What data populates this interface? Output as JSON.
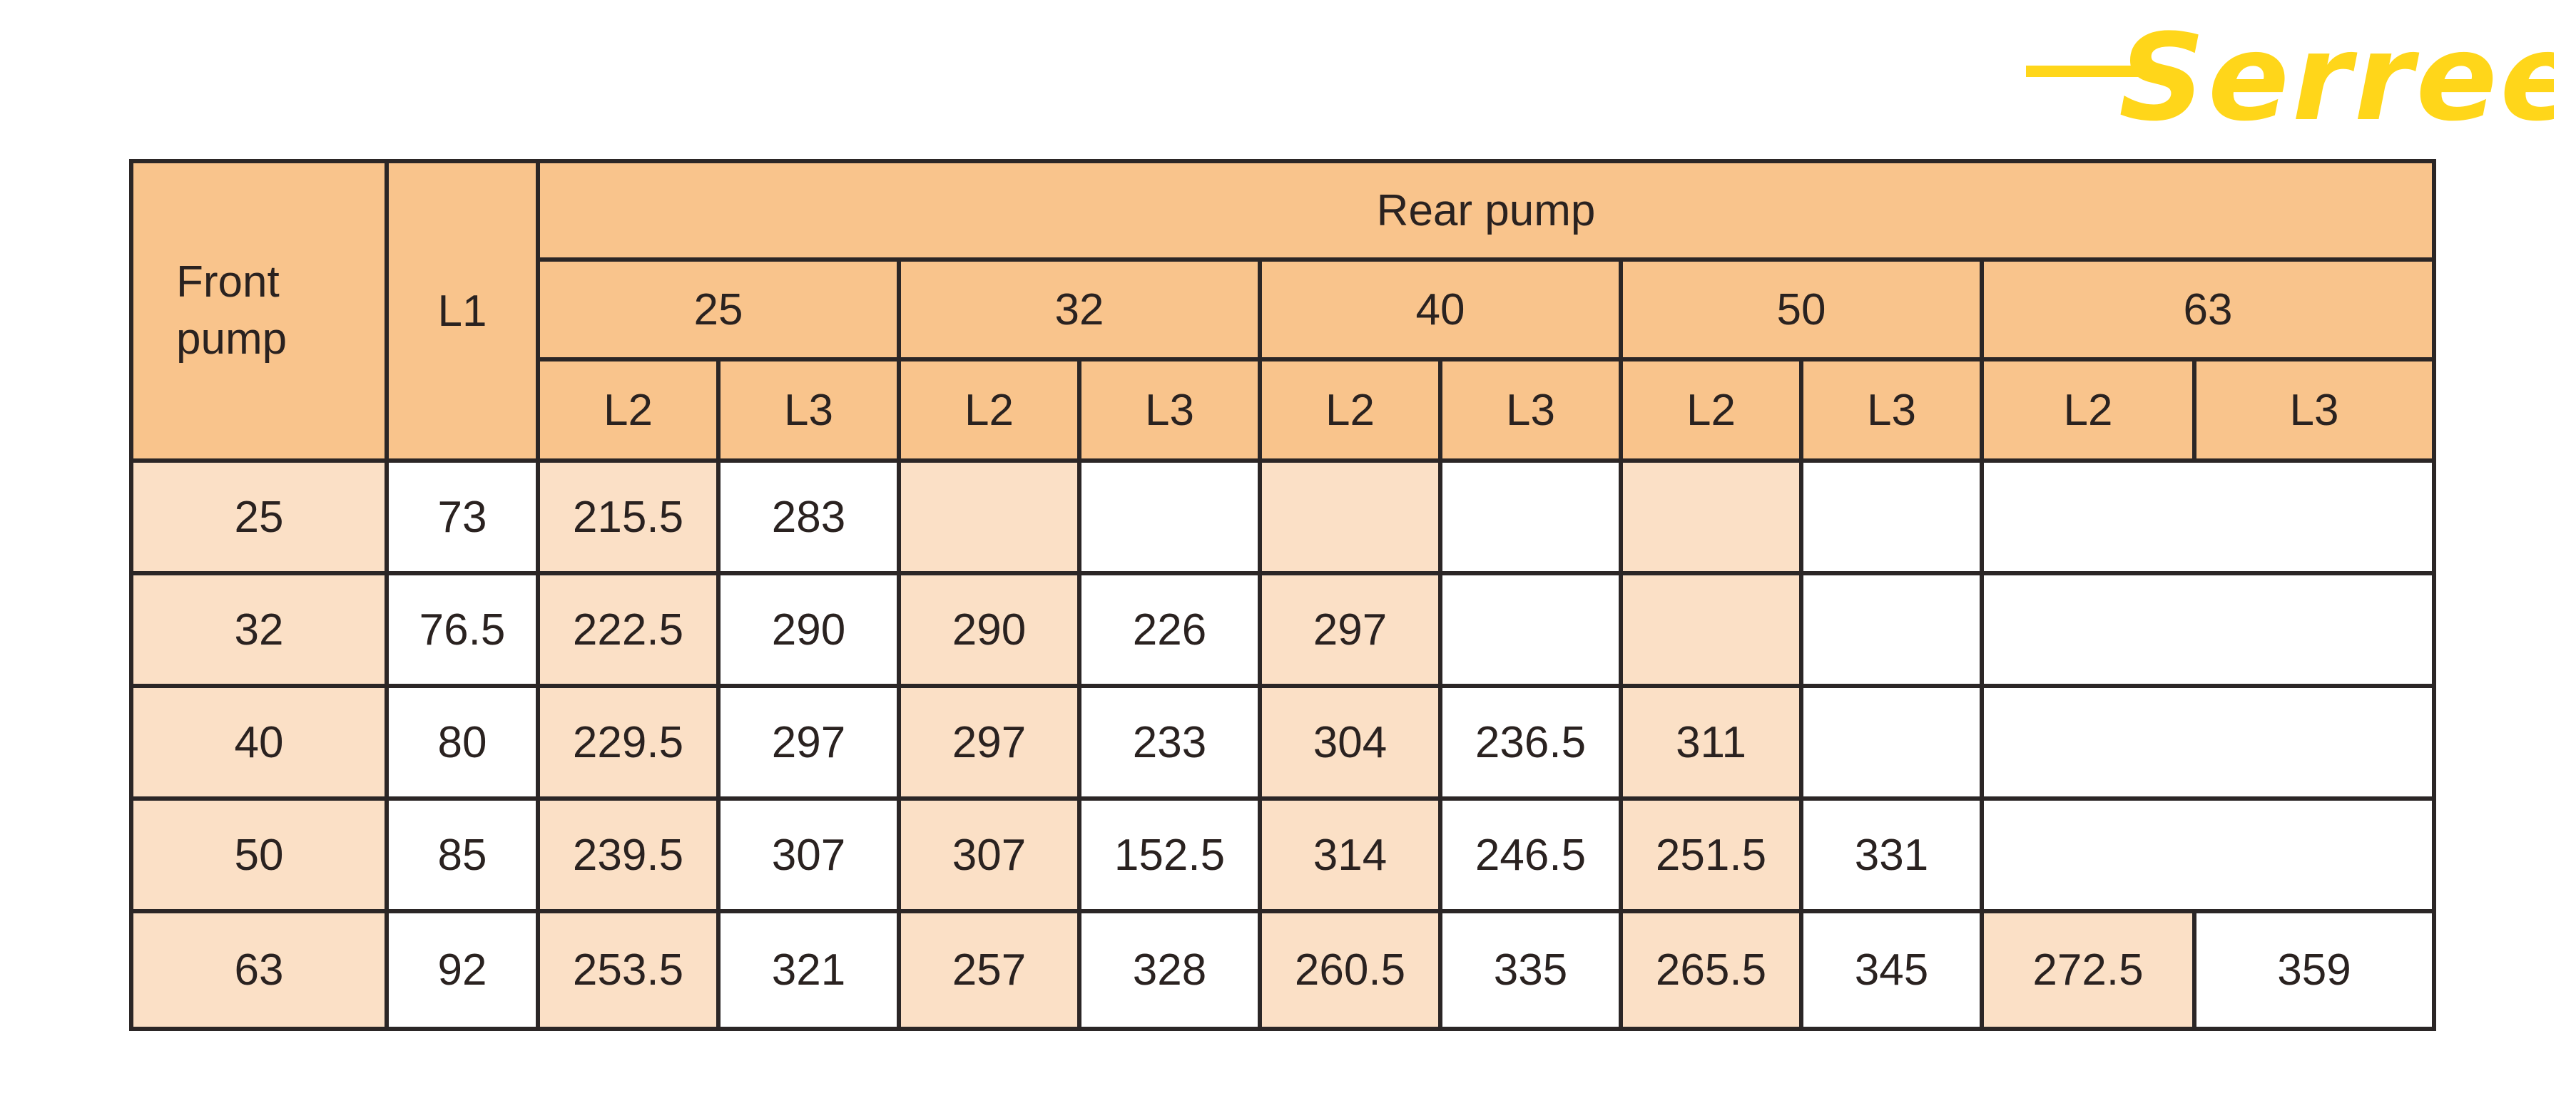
{
  "brand": {
    "logo_text": "Serreen",
    "color": "#ffd61a"
  },
  "colors": {
    "header": "#f9c48c",
    "shaded": "#fbe0c6",
    "border": "#2b2626"
  },
  "header": {
    "front_pump_line1": "Front",
    "front_pump_line2": "pump",
    "l1": "L1",
    "rear_pump": "Rear pump",
    "rear_sizes": [
      "25",
      "32",
      "40",
      "50",
      "63"
    ],
    "sub_labels": [
      "L2",
      "L3"
    ]
  },
  "rows": [
    {
      "front": "25",
      "l1": "73",
      "cells": [
        "215.5",
        "283",
        "",
        "",
        "",
        "",
        "",
        "",
        "",
        ""
      ]
    },
    {
      "front": "32",
      "l1": "76.5",
      "cells": [
        "222.5",
        "290",
        "290",
        "226",
        "297",
        "",
        "",
        "",
        "",
        ""
      ]
    },
    {
      "front": "40",
      "l1": "80",
      "cells": [
        "229.5",
        "297",
        "297",
        "233",
        "304",
        "236.5",
        "311",
        "",
        "",
        ""
      ]
    },
    {
      "front": "50",
      "l1": "85",
      "cells": [
        "239.5",
        "307",
        "307",
        "152.5",
        "314",
        "246.5",
        "251.5",
        "331",
        "",
        ""
      ]
    },
    {
      "front": "63",
      "l1": "92",
      "cells": [
        "253.5",
        "321",
        "257",
        "328",
        "260.5",
        "335",
        "265.5",
        "345",
        "272.5",
        "359"
      ]
    }
  ]
}
